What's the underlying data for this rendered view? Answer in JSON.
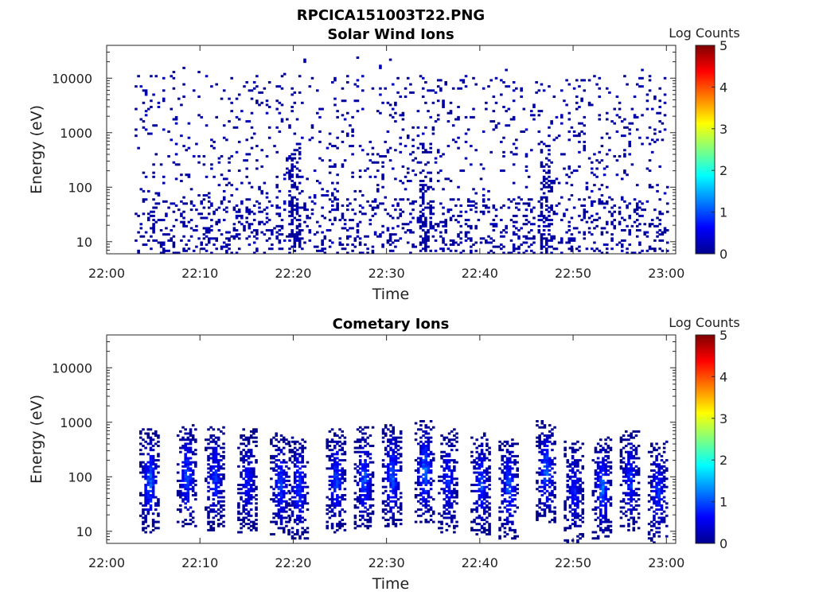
{
  "figure": {
    "title": "RPCICA151003T22.PNG"
  },
  "chart_data": [
    {
      "type": "heatmap",
      "title": "Solar Wind Ions",
      "xlabel": "Time",
      "ylabel": "Energy (eV)",
      "yscale": "log",
      "xlim": [
        "22:00",
        "23:01"
      ],
      "ylim": [
        6,
        40000
      ],
      "xticks": [
        "22:00",
        "22:10",
        "22:20",
        "22:30",
        "22:40",
        "22:50",
        "23:00"
      ],
      "yticks": [
        "10",
        "100",
        "1000",
        "10000"
      ],
      "colorbar": {
        "label": "Log Counts",
        "range": [
          0,
          5
        ],
        "ticks": [
          "0",
          "1",
          "2",
          "3",
          "4",
          "5"
        ],
        "colormap": "jet"
      },
      "description_of_data": "sparse counts (log counts about 0) scattered from about 22:03 to 23:00 across 6 eV to about 10000 eV; denser near 10-60 eV and vertical streaks near 22:20, 22:34 and 22:47",
      "data_start": "22:03",
      "data_end": "23:00"
    },
    {
      "type": "heatmap",
      "title": "Cometary Ions",
      "xlabel": "Time",
      "ylabel": "Energy (eV)",
      "yscale": "log",
      "xlim": [
        "22:00",
        "23:01"
      ],
      "ylim": [
        6,
        40000
      ],
      "xticks": [
        "22:00",
        "22:10",
        "22:20",
        "22:30",
        "22:40",
        "22:50",
        "23:00"
      ],
      "yticks": [
        "10",
        "100",
        "1000",
        "10000"
      ],
      "colorbar": {
        "label": "Log Counts",
        "range": [
          0,
          5
        ],
        "ticks": [
          "0",
          "1",
          "2",
          "3",
          "4",
          "5"
        ],
        "colormap": "jet"
      },
      "description_of_data": "periodic bursts of ions spanning about 6-600 eV with peak log counts about 1.5 near 30-300 eV",
      "bursts": [
        {
          "center": "22:04.5",
          "peak_energy": 80,
          "peak_log": 1.5
        },
        {
          "center": "22:08.5",
          "peak_energy": 100,
          "peak_log": 1.4
        },
        {
          "center": "22:11.5",
          "peak_energy": 90,
          "peak_log": 1.2
        },
        {
          "center": "22:15",
          "peak_energy": 80,
          "peak_log": 1.0
        },
        {
          "center": "22:18.5",
          "peak_energy": 70,
          "peak_log": 1.3
        },
        {
          "center": "22:20.5",
          "peak_energy": 60,
          "peak_log": 1.3
        },
        {
          "center": "22:24.5",
          "peak_energy": 80,
          "peak_log": 1.3
        },
        {
          "center": "22:27.5",
          "peak_energy": 90,
          "peak_log": 1.4
        },
        {
          "center": "22:30.5",
          "peak_energy": 100,
          "peak_log": 1.5
        },
        {
          "center": "22:34",
          "peak_energy": 120,
          "peak_log": 1.6
        },
        {
          "center": "22:36.5",
          "peak_energy": 80,
          "peak_log": 1.1
        },
        {
          "center": "22:40",
          "peak_energy": 70,
          "peak_log": 1.3
        },
        {
          "center": "22:43",
          "peak_energy": 60,
          "peak_log": 1.4
        },
        {
          "center": "22:47",
          "peak_energy": 120,
          "peak_log": 1.5
        },
        {
          "center": "22:50",
          "peak_energy": 50,
          "peak_log": 1.0
        },
        {
          "center": "22:53",
          "peak_energy": 60,
          "peak_log": 1.5
        },
        {
          "center": "22:56",
          "peak_energy": 80,
          "peak_log": 1.2
        },
        {
          "center": "22:59",
          "peak_energy": 50,
          "peak_log": 1.2
        }
      ]
    }
  ]
}
